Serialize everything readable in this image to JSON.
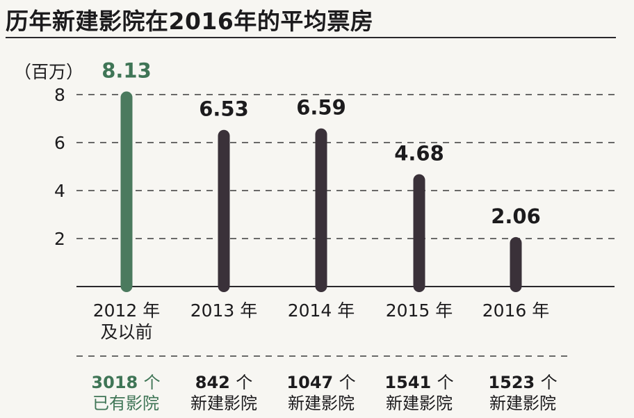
{
  "title": "历年新建影院在2016年的平均票房",
  "chart_data": {
    "type": "bar",
    "ylabel": "（百万）",
    "ylim": [
      0,
      8.13
    ],
    "yticks": [
      2,
      4,
      6,
      8
    ],
    "grid": true,
    "categories": [
      [
        "2012 年",
        "及以前"
      ],
      [
        "2013 年"
      ],
      [
        "2014 年"
      ],
      [
        "2015 年"
      ],
      [
        "2016 年"
      ]
    ],
    "values": [
      8.13,
      6.53,
      6.59,
      4.68,
      2.06
    ],
    "value_labels": [
      "8.13",
      "6.53",
      "6.59",
      "4.68",
      "2.06"
    ],
    "colors": [
      "#4b7a5e",
      "#3a3139",
      "#3a3139",
      "#3a3139",
      "#3a3139"
    ],
    "value_label_colors": [
      "#3f7556",
      "#1c1b1d",
      "#1c1b1d",
      "#1c1b1d",
      "#1c1b1d"
    ]
  },
  "cinema_counts": [
    {
      "count": "3018",
      "unit": "个",
      "desc": "已有影院",
      "highlight": true
    },
    {
      "count": "842",
      "unit": "个",
      "desc": "新建影院",
      "highlight": false
    },
    {
      "count": "1047",
      "unit": "个",
      "desc": "新建影院",
      "highlight": false
    },
    {
      "count": "1541",
      "unit": "个",
      "desc": "新建影院",
      "highlight": false
    },
    {
      "count": "1523",
      "unit": "个",
      "desc": "新建影院",
      "highlight": false
    }
  ]
}
